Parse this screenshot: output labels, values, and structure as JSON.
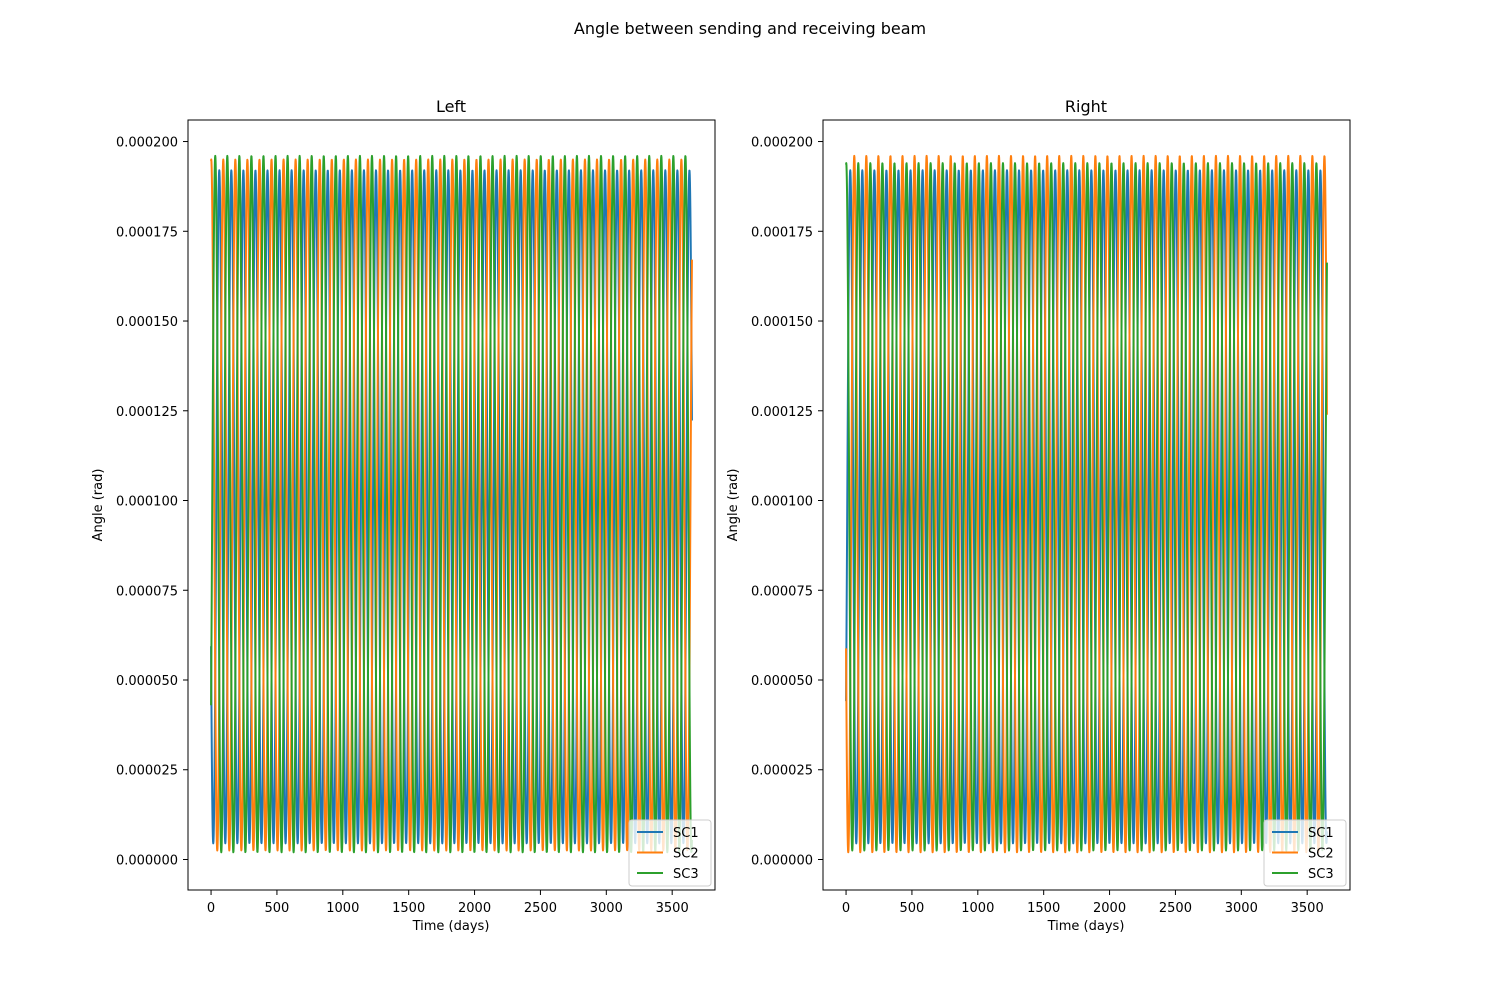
{
  "figure": {
    "suptitle": "Angle between sending and receiving beam"
  },
  "chart_data": [
    {
      "type": "line",
      "title": "Left",
      "xlabel": "Time (days)",
      "ylabel": "Angle (rad)",
      "xlim": [
        -175,
        3825
      ],
      "ylim": [
        -8.5e-06,
        0.000206
      ],
      "xticks": [
        0,
        500,
        1000,
        1500,
        2000,
        2500,
        3000,
        3500
      ],
      "xtick_labels": [
        "0",
        "500",
        "1000",
        "1500",
        "2000",
        "2500",
        "3000",
        "3500"
      ],
      "yticks": [
        0,
        2.5e-05,
        5e-05,
        7.5e-05,
        0.0001,
        0.000125,
        0.00015,
        0.000175,
        0.0002
      ],
      "ytick_labels": [
        "0.000000",
        "0.000025",
        "0.000050",
        "0.000075",
        "0.000100",
        "0.000125",
        "0.000150",
        "0.000175",
        "0.000200"
      ],
      "grid": false,
      "legend": "lower-right",
      "x_range": [
        0,
        3650
      ],
      "series": [
        {
          "name": "SC1",
          "color": "#1f77b4",
          "period_days": 91.5,
          "phase": 0.318,
          "min": 4.5e-06,
          "max": 0.000192,
          "end_value": 0.00019
        },
        {
          "name": "SC2",
          "color": "#ff7f0e",
          "period_days": 91.5,
          "phase": 0.985,
          "min": 2.5e-06,
          "max": 0.000195,
          "end_value": 6.7e-05
        },
        {
          "name": "SC3",
          "color": "#2ca02c",
          "period_days": 91.5,
          "phase": 0.652,
          "min": 2e-06,
          "max": 0.000196,
          "end_value": 0.000127
        }
      ]
    },
    {
      "type": "line",
      "title": "Right",
      "xlabel": "Time (days)",
      "ylabel": "Angle (rad)",
      "xlim": [
        -175,
        3825
      ],
      "ylim": [
        -8.5e-06,
        0.000206
      ],
      "xticks": [
        0,
        500,
        1000,
        1500,
        2000,
        2500,
        3000,
        3500
      ],
      "xtick_labels": [
        "0",
        "500",
        "1000",
        "1500",
        "2000",
        "2500",
        "3000",
        "3500"
      ],
      "yticks": [
        0,
        2.5e-05,
        5e-05,
        7.5e-05,
        0.0001,
        0.000125,
        0.00015,
        0.000175,
        0.0002
      ],
      "ytick_labels": [
        "0.000000",
        "0.000025",
        "0.000050",
        "0.000075",
        "0.000100",
        "0.000125",
        "0.000150",
        "0.000175",
        "0.000200"
      ],
      "grid": false,
      "legend": "lower-right",
      "x_range": [
        0,
        3650
      ],
      "series": [
        {
          "name": "SC1",
          "color": "#1f77b4",
          "period_days": 91.5,
          "phase": 0.652,
          "min": 4.5e-06,
          "max": 0.000192,
          "end_value": 0.000124
        },
        {
          "name": "SC2",
          "color": "#ff7f0e",
          "period_days": 91.5,
          "phase": 0.318,
          "min": 2e-06,
          "max": 0.000196,
          "end_value": 0.000192
        },
        {
          "name": "SC3",
          "color": "#2ca02c",
          "period_days": 91.5,
          "phase": 0.985,
          "min": 2.5e-06,
          "max": 0.000194,
          "end_value": 6.4e-05
        }
      ]
    }
  ]
}
